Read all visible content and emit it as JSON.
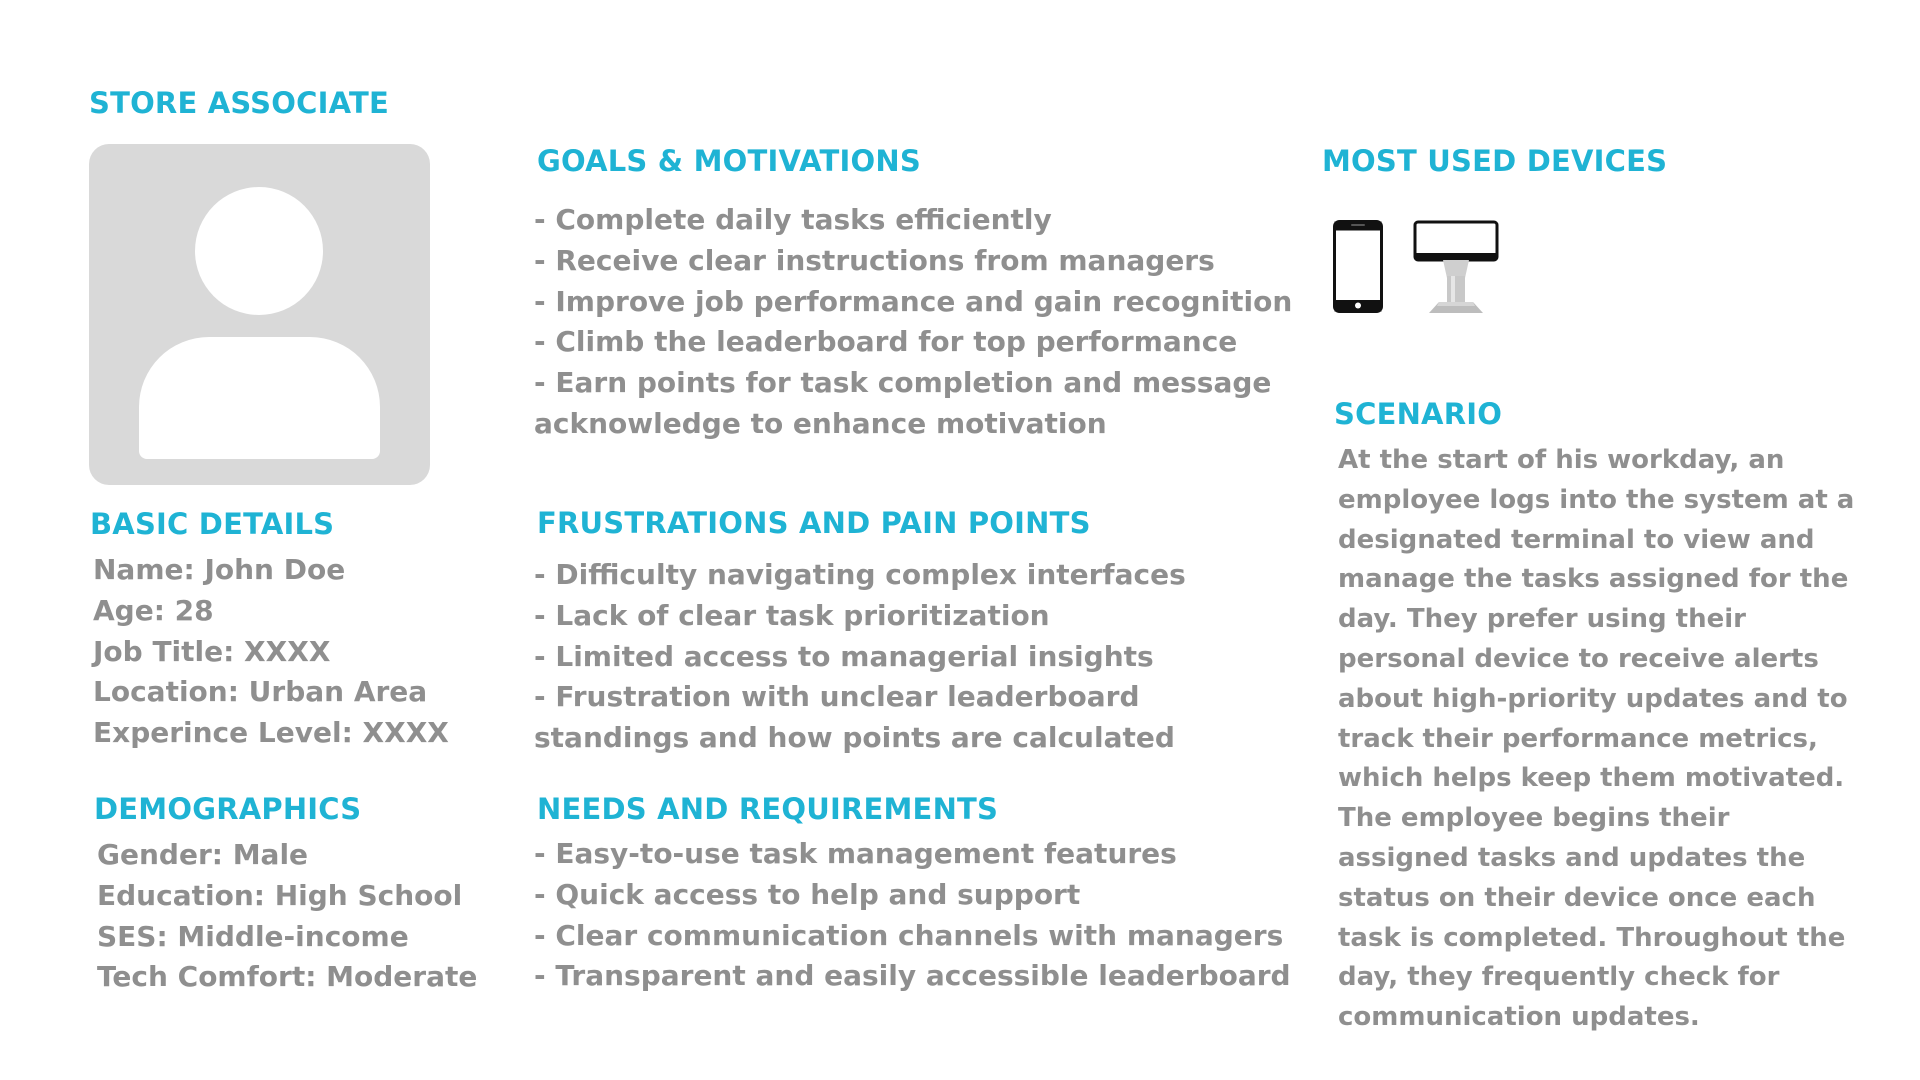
{
  "persona": {
    "title": "STORE ASSOCIATE"
  },
  "basic_details": {
    "heading": "BASIC DETAILS",
    "items": [
      "Name: John Doe",
      "Age: 28",
      "Job Title: XXXX",
      "Location: Urban Area",
      "Experince Level: XXXX"
    ]
  },
  "demographics": {
    "heading": "DEMOGRAPHICS",
    "items": [
      "Gender: Male",
      "Education: High School",
      "SES: Middle-income",
      "Tech Comfort: Moderate"
    ]
  },
  "goals": {
    "heading": "GOALS & MOTIVATIONS",
    "lines": [
      "- Complete daily tasks efficiently",
      "- Receive clear instructions from managers",
      "- Improve job performance and gain recognition",
      "- Climb the leaderboard for top performance",
      "- Earn points for task completion and message",
      "acknowledge to enhance motivation"
    ]
  },
  "frustrations": {
    "heading": "FRUSTRATIONS AND PAIN POINTS",
    "lines": [
      "- Difficulty navigating complex interfaces",
      "- Lack of clear task prioritization",
      "- Limited access to managerial insights",
      "- Frustration with unclear leaderboard",
      "standings and how points are calculated"
    ]
  },
  "needs": {
    "heading": "NEEDS AND REQUIREMENTS",
    "lines": [
      "- Easy-to-use task management features",
      "- Quick access to help and support",
      "- Clear communication channels with managers",
      "- Transparent and easily accessible leaderboard"
    ]
  },
  "devices": {
    "heading": "MOST USED DEVICES",
    "icons": [
      "smartphone-icon",
      "kiosk-terminal-icon"
    ]
  },
  "scenario": {
    "heading": "SCENARIO",
    "text": "At the start of his workday, an employee logs into the system at a designated terminal to view and manage the tasks assigned for the day. They prefer using their personal device to receive alerts about high-priority updates and to track their performance metrics, which helps keep them motivated. The employee begins their assigned tasks and updates the status on their device once each task is completed. Throughout the day, they frequently check for communication updates."
  },
  "colors": {
    "accent": "#1fb3d4",
    "body_text": "#8f8f8f",
    "avatar_bg": "#d9d9d9"
  }
}
